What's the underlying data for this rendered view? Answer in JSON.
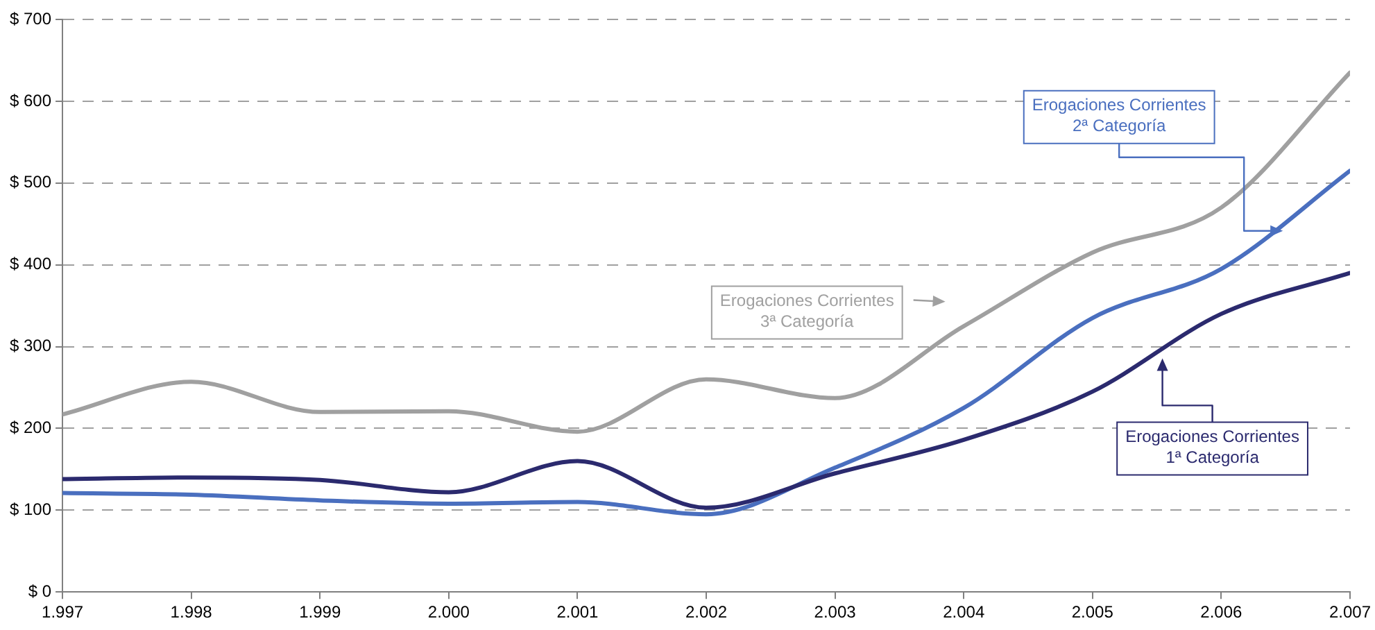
{
  "chart_data": {
    "type": "line",
    "x": [
      1997,
      1998,
      1999,
      2000,
      2001,
      2002,
      2003,
      2004,
      2005,
      2006,
      2007
    ],
    "xlim": [
      1997,
      2007
    ],
    "xticks": [
      {
        "value": 1997,
        "label": "1.997"
      },
      {
        "value": 1998,
        "label": "1.998"
      },
      {
        "value": 1999,
        "label": "1.999"
      },
      {
        "value": 2000,
        "label": "2.000"
      },
      {
        "value": 2001,
        "label": "2.001"
      },
      {
        "value": 2002,
        "label": "2.002"
      },
      {
        "value": 2003,
        "label": "2.003"
      },
      {
        "value": 2004,
        "label": "2.004"
      },
      {
        "value": 2005,
        "label": "2.005"
      },
      {
        "value": 2006,
        "label": "2.006"
      },
      {
        "value": 2007,
        "label": "2.007"
      }
    ],
    "ylim": [
      0,
      700
    ],
    "yticks": [
      {
        "value": 0,
        "label": "$ 0"
      },
      {
        "value": 100,
        "label": "$ 100"
      },
      {
        "value": 200,
        "label": "$ 200"
      },
      {
        "value": 300,
        "label": "$ 300"
      },
      {
        "value": 400,
        "label": "$ 400"
      },
      {
        "value": 500,
        "label": "$ 500"
      },
      {
        "value": 600,
        "label": "$ 600"
      },
      {
        "value": 700,
        "label": "$ 700"
      }
    ],
    "grid": "y",
    "marker": "none",
    "line_style": "solid",
    "series": [
      {
        "name": "Erogaciones Corrientes 1ª Categoría",
        "color": "#2b2a6e",
        "values": [
          138,
          140,
          137,
          122,
          160,
          103,
          145,
          186,
          245,
          340,
          390
        ]
      },
      {
        "name": "Erogaciones Corrientes 2ª Categoría",
        "color": "#4a6fbf",
        "values": [
          121,
          119,
          112,
          108,
          110,
          95,
          152,
          225,
          335,
          395,
          515
        ]
      },
      {
        "name": "Erogaciones Corrientes 3ª Categoría",
        "color": "#a0a0a0",
        "values": [
          217,
          257,
          220,
          221,
          196,
          260,
          237,
          325,
          415,
          470,
          635
        ]
      }
    ]
  }
}
